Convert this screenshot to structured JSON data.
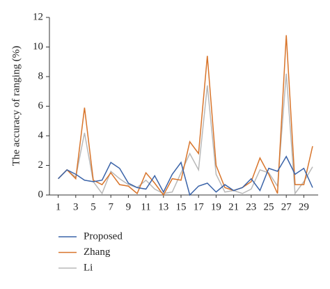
{
  "chart_data": {
    "type": "line",
    "y_label": "The accuracy of ranging (%)",
    "x": [
      1,
      2,
      3,
      4,
      5,
      6,
      7,
      8,
      9,
      10,
      11,
      12,
      13,
      14,
      15,
      16,
      17,
      18,
      19,
      20,
      21,
      22,
      23,
      24,
      25,
      26,
      27,
      28,
      29,
      30
    ],
    "series": [
      {
        "name": "Proposed",
        "color": "#3a63a8",
        "values": [
          1.1,
          1.7,
          1.4,
          1.0,
          0.9,
          1.0,
          2.2,
          1.8,
          0.8,
          0.5,
          0.4,
          1.3,
          0.2,
          1.4,
          2.2,
          0.0,
          0.6,
          0.8,
          0.2,
          0.7,
          0.3,
          0.5,
          1.1,
          0.3,
          1.8,
          1.6,
          2.6,
          1.4,
          1.8,
          0.5
        ]
      },
      {
        "name": "Zhang",
        "color": "#d8742a",
        "values": [
          1.1,
          1.7,
          1.1,
          5.9,
          1.0,
          0.7,
          1.5,
          0.7,
          0.6,
          0.1,
          1.5,
          0.8,
          0.0,
          1.1,
          1.0,
          3.6,
          2.8,
          9.4,
          2.0,
          0.5,
          0.3,
          0.5,
          0.9,
          2.5,
          1.4,
          0.1,
          10.8,
          0.7,
          0.7,
          3.3
        ]
      },
      {
        "name": "Li",
        "color": "#b8b8b8",
        "values": [
          1.1,
          1.7,
          1.2,
          4.2,
          0.9,
          0.1,
          1.6,
          1.1,
          0.7,
          0.5,
          1.0,
          0.4,
          0.1,
          0.2,
          1.5,
          2.8,
          1.7,
          7.4,
          1.4,
          0.2,
          0.3,
          0.1,
          0.4,
          1.7,
          1.5,
          0.6,
          8.2,
          0.1,
          0.9,
          1.9
        ]
      }
    ],
    "xlim": [
      0,
      30
    ],
    "xticks": [
      1,
      3,
      5,
      7,
      9,
      11,
      13,
      15,
      17,
      19,
      21,
      23,
      25,
      27,
      29
    ],
    "ylim": [
      0,
      12
    ],
    "yticks": [
      0,
      2,
      4,
      6,
      8,
      10,
      12
    ],
    "grid": false,
    "legend": "bottom"
  }
}
